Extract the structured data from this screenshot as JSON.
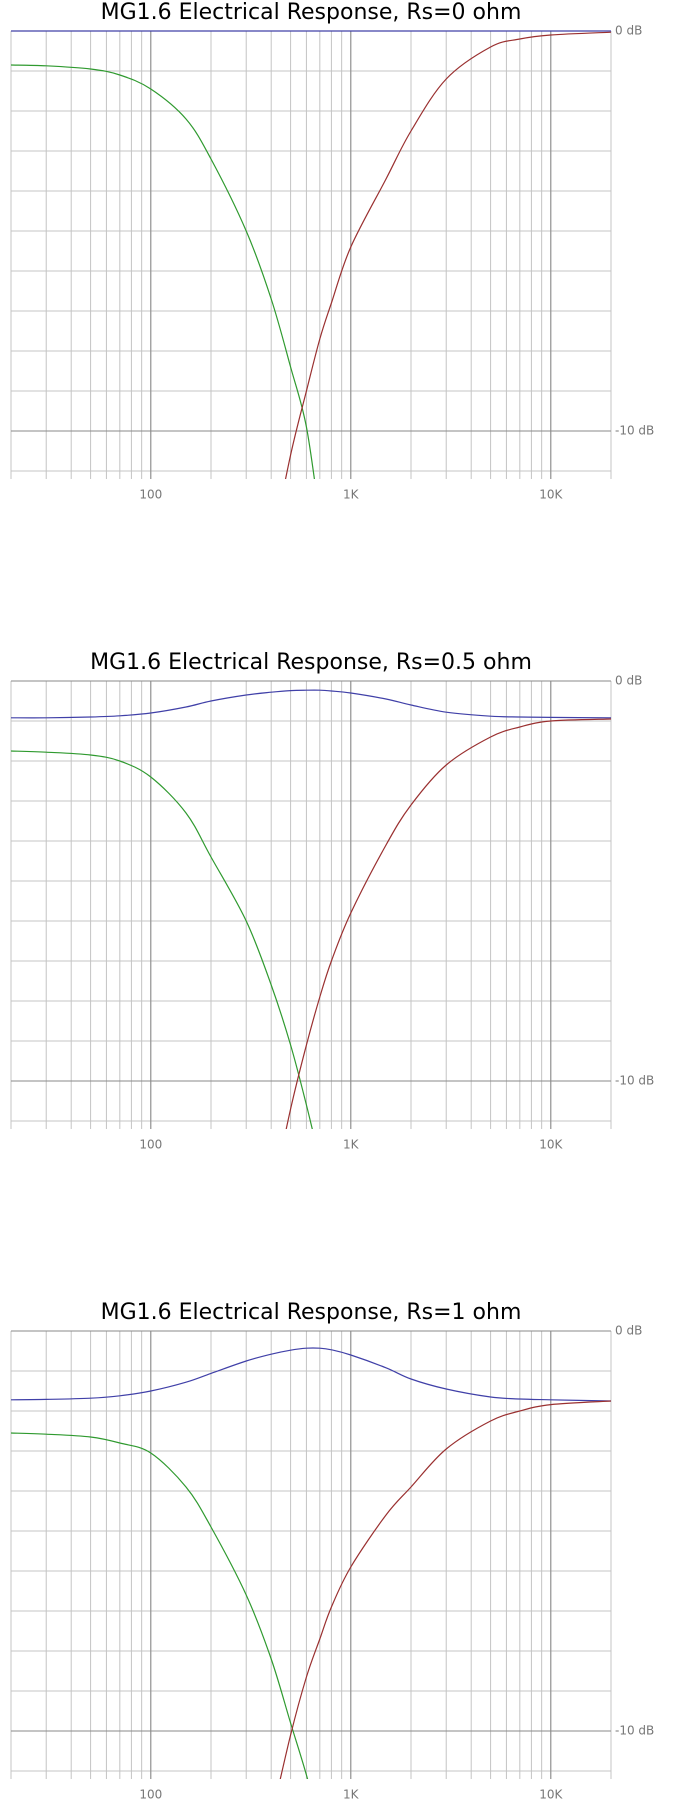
{
  "chart_data": [
    {
      "type": "line",
      "title": "MG1.6 Electrical Response, Rs=0 ohm",
      "xscale": "log",
      "x": [
        20,
        30,
        50,
        70,
        100,
        150,
        200,
        300,
        400,
        500,
        600,
        700,
        800,
        1000,
        1500,
        2000,
        3000,
        5000,
        7000,
        10000,
        20000
      ],
      "xlim": [
        20,
        20000
      ],
      "ylim": [
        -11.2,
        0
      ],
      "xticks": [
        100,
        {
          "value": 1000,
          "label": "1K"
        },
        {
          "value": 10000,
          "label": "10K"
        }
      ],
      "yticks": [
        {
          "value": 0,
          "label": "0 dB"
        },
        {
          "value": -10,
          "label": "-10 dB"
        }
      ],
      "grid": true,
      "series": [
        {
          "color": "#4040a8",
          "values": [
            0,
            0,
            0,
            0,
            0,
            0,
            0,
            0,
            0,
            0,
            0,
            0,
            0,
            0,
            0,
            0,
            0,
            0,
            0,
            0,
            0
          ]
        },
        {
          "color": "#2f9a2f",
          "values": [
            -0.85,
            -0.87,
            -0.95,
            -1.1,
            -1.45,
            -2.2,
            -3.2,
            -5.0,
            -6.7,
            -8.4,
            -9.9,
            -12.2,
            null,
            null,
            null,
            null,
            null,
            null,
            null,
            null,
            null
          ]
        },
        {
          "color": "#9a3030",
          "values": [
            null,
            null,
            null,
            null,
            null,
            null,
            null,
            null,
            -13.0,
            -10.6,
            -9.0,
            -7.7,
            -6.8,
            -5.4,
            -3.7,
            -2.5,
            -1.2,
            -0.4,
            -0.2,
            -0.1,
            -0.03
          ]
        }
      ]
    },
    {
      "type": "line",
      "title": "MG1.6 Electrical Response, Rs=0.5 ohm",
      "xscale": "log",
      "x": [
        20,
        30,
        50,
        70,
        100,
        150,
        200,
        300,
        400,
        500,
        600,
        700,
        800,
        1000,
        1500,
        2000,
        3000,
        5000,
        7000,
        10000,
        20000
      ],
      "xlim": [
        20,
        20000
      ],
      "ylim": [
        -11.2,
        0
      ],
      "xticks": [
        100,
        {
          "value": 1000,
          "label": "1K"
        },
        {
          "value": 10000,
          "label": "10K"
        }
      ],
      "yticks": [
        {
          "value": 0,
          "label": "0 dB"
        },
        {
          "value": -10,
          "label": "-10 dB"
        }
      ],
      "grid": true,
      "series": [
        {
          "color": "#4040a8",
          "values": [
            -0.92,
            -0.92,
            -0.9,
            -0.87,
            -0.8,
            -0.65,
            -0.5,
            -0.35,
            -0.28,
            -0.24,
            -0.23,
            -0.23,
            -0.25,
            -0.3,
            -0.45,
            -0.6,
            -0.78,
            -0.88,
            -0.9,
            -0.91,
            -0.92
          ]
        },
        {
          "color": "#2f9a2f",
          "values": [
            -1.75,
            -1.78,
            -1.85,
            -2.0,
            -2.4,
            -3.3,
            -4.4,
            -6.0,
            -7.6,
            -9.1,
            -10.6,
            -12.0,
            null,
            null,
            null,
            null,
            null,
            null,
            null,
            null,
            null
          ]
        },
        {
          "color": "#9a3030",
          "values": [
            null,
            null,
            null,
            null,
            null,
            null,
            null,
            null,
            -13.0,
            -10.7,
            -9.1,
            -7.9,
            -7.0,
            -5.8,
            -4.1,
            -3.1,
            -2.1,
            -1.4,
            -1.15,
            -1.0,
            -0.95
          ]
        }
      ]
    },
    {
      "type": "line",
      "title": "MG1.6 Electrical Response, Rs=1 ohm",
      "xscale": "log",
      "x": [
        20,
        30,
        50,
        70,
        100,
        150,
        200,
        300,
        400,
        500,
        600,
        700,
        800,
        1000,
        1500,
        2000,
        3000,
        5000,
        7000,
        10000,
        20000
      ],
      "xlim": [
        20,
        20000
      ],
      "ylim": [
        -11.2,
        0
      ],
      "xticks": [
        100,
        {
          "value": 1000,
          "label": "1K"
        },
        {
          "value": 10000,
          "label": "10K"
        }
      ],
      "yticks": [
        {
          "value": 0,
          "label": "0 dB"
        },
        {
          "value": -10,
          "label": "-10 dB"
        }
      ],
      "grid": true,
      "series": [
        {
          "color": "#4040a8",
          "values": [
            -1.72,
            -1.71,
            -1.68,
            -1.62,
            -1.5,
            -1.28,
            -1.06,
            -0.75,
            -0.58,
            -0.48,
            -0.43,
            -0.43,
            -0.47,
            -0.6,
            -0.92,
            -1.2,
            -1.45,
            -1.65,
            -1.7,
            -1.72,
            -1.75
          ]
        },
        {
          "color": "#2f9a2f",
          "values": [
            -2.55,
            -2.58,
            -2.65,
            -2.8,
            -3.05,
            -3.9,
            -4.9,
            -6.6,
            -8.2,
            -9.8,
            -11.1,
            -12.4,
            null,
            null,
            null,
            null,
            null,
            null,
            null,
            null,
            null
          ]
        },
        {
          "color": "#9a3030",
          "values": [
            null,
            null,
            null,
            null,
            null,
            null,
            null,
            null,
            -12.2,
            -10.1,
            -8.65,
            -7.7,
            -6.9,
            -5.9,
            -4.6,
            -3.9,
            -2.95,
            -2.25,
            -2.0,
            -1.84,
            -1.75
          ]
        }
      ]
    }
  ]
}
